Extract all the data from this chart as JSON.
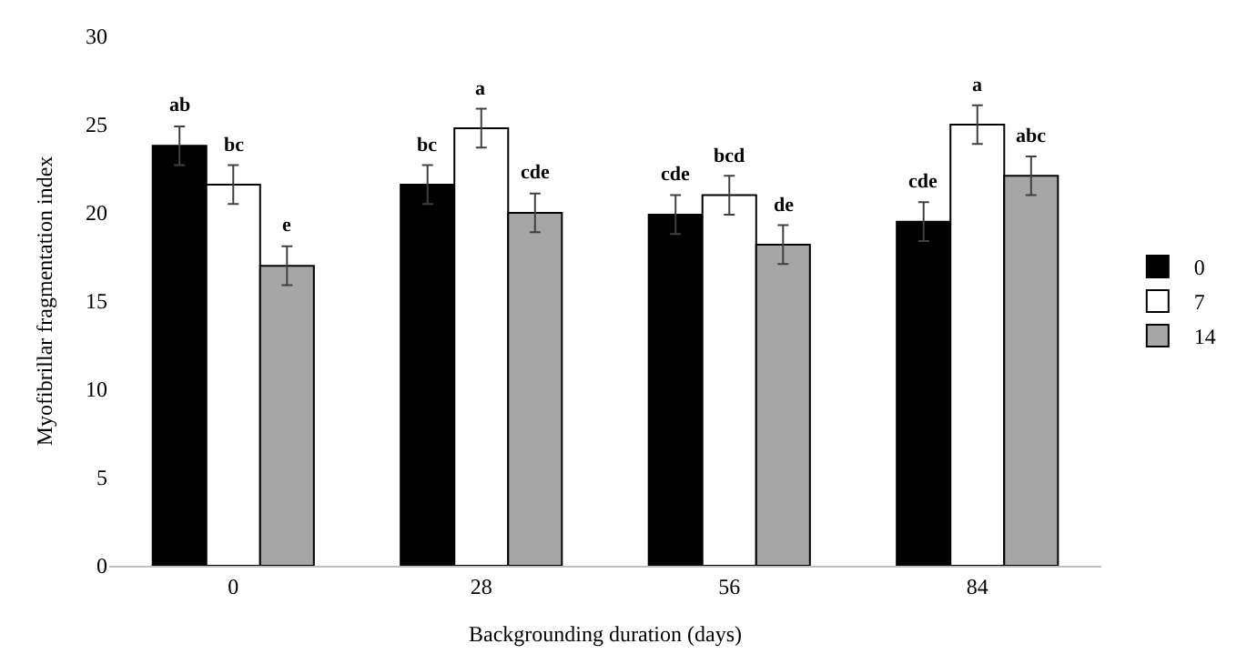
{
  "chart_data": {
    "type": "bar",
    "xlabel": "Backgrounding duration (days)",
    "ylabel": "Myofibrillar fragmentation index",
    "categories": [
      "0",
      "28",
      "56",
      "84"
    ],
    "series": [
      {
        "name": "0",
        "color": "#000000",
        "values": [
          23.8,
          21.6,
          19.9,
          19.5
        ],
        "errors": [
          1.1,
          1.1,
          1.1,
          1.1
        ],
        "value_labels": [
          "ab",
          "bc",
          "cde",
          "cde"
        ]
      },
      {
        "name": "7",
        "color": "#ffffff",
        "values": [
          21.6,
          24.8,
          21.0,
          25.0
        ],
        "errors": [
          1.1,
          1.1,
          1.1,
          1.1
        ],
        "value_labels": [
          "bc",
          "a",
          "bcd",
          "a"
        ]
      },
      {
        "name": "14",
        "color": "#a6a6a6",
        "values": [
          17.0,
          20.0,
          18.2,
          22.1
        ],
        "errors": [
          1.1,
          1.1,
          1.1,
          1.1
        ],
        "value_labels": [
          "e",
          "cde",
          "de",
          "abc"
        ]
      }
    ],
    "ylim": [
      0,
      30
    ],
    "yticks": [
      0,
      5,
      10,
      15,
      20,
      25,
      30
    ],
    "legend": "right"
  }
}
